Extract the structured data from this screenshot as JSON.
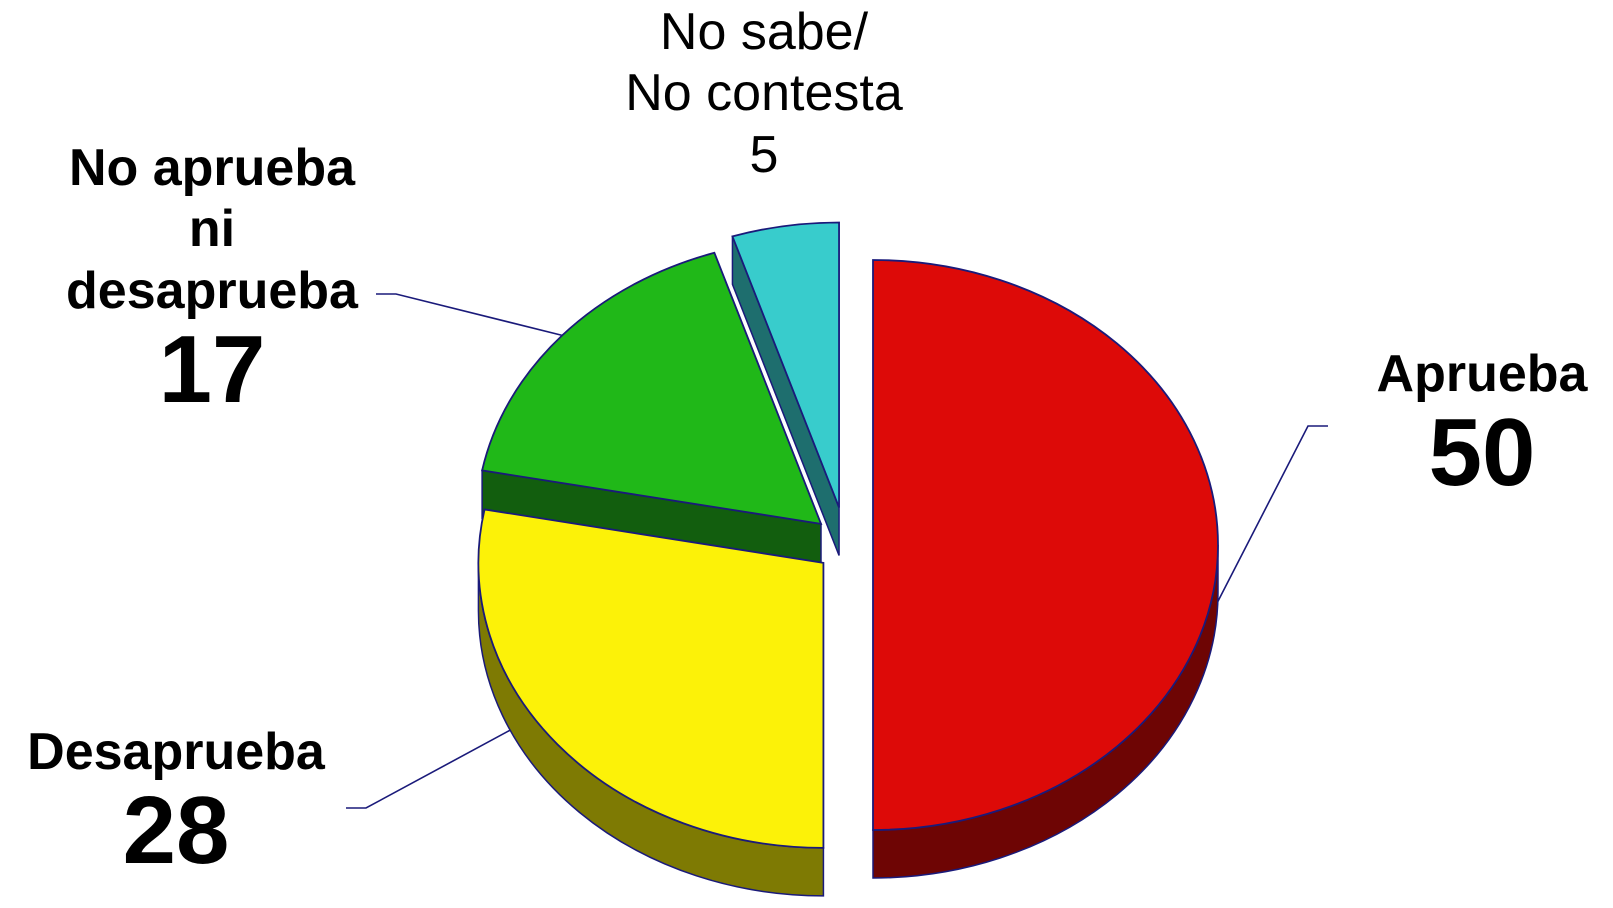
{
  "chart_data": {
    "type": "pie",
    "title": "",
    "slices": [
      {
        "label": "Aprueba",
        "value": 50,
        "color": "#DD0A08",
        "side_color": "#6E0504"
      },
      {
        "label": "Desaprueba",
        "value": 28,
        "color": "#FCF208",
        "side_color": "#7E7A03"
      },
      {
        "label": "No aprueba\nni\ndesaprueba",
        "value": 17,
        "color": "#20B818",
        "side_color": "#125E0E"
      },
      {
        "label": "No sabe/\nNo contesta",
        "value": 5,
        "color": "#38CCCC",
        "side_color": "#1E6E6E"
      }
    ],
    "legend": "none",
    "style": "3d-exploded"
  }
}
